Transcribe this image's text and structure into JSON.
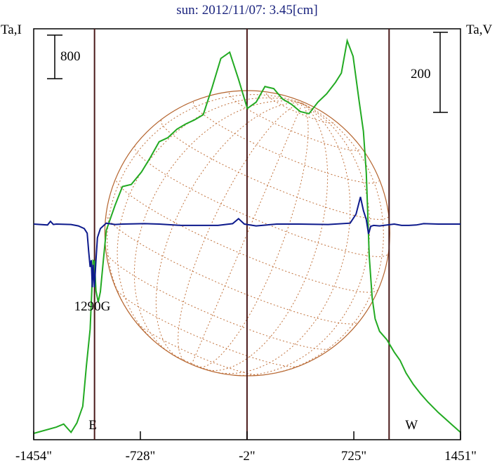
{
  "chart_data": {
    "type": "line",
    "title": "sun: 2012/11/07: 3.45[cm]",
    "left_axis_label": "Ta,I",
    "right_axis_label": "Ta,V",
    "scale_bars": [
      {
        "side": "left",
        "label": "800"
      },
      {
        "side": "right",
        "label": "200"
      }
    ],
    "x_ticks": [
      {
        "value": -1454,
        "label": "-1454\""
      },
      {
        "value": -728,
        "label": "-728\""
      },
      {
        "value": -2,
        "label": "-2\""
      },
      {
        "value": 725,
        "label": "725\""
      },
      {
        "value": 1451,
        "label": "1451\""
      }
    ],
    "xlim": [
      -1454,
      1451
    ],
    "vertical_markers": [
      -1040,
      -2,
      965
    ],
    "limb_labels": [
      {
        "label": "E",
        "x": -1080
      },
      {
        "label": "W",
        "x": 1075
      }
    ],
    "annotations": [
      {
        "text": "1290G",
        "x": -1055
      }
    ],
    "sun_disk_radius_arcsec": 970,
    "series": [
      {
        "name": "I",
        "color": "#22aa22",
        "x": [
          -1454,
          -1300,
          -1250,
          -1200,
          -1160,
          -1120,
          -1095,
          -1070,
          -1050,
          -1040,
          -1030,
          -1015,
          -1000,
          -980,
          -960,
          -900,
          -850,
          -790,
          -720,
          -660,
          -600,
          -540,
          -480,
          -420,
          -360,
          -300,
          -240,
          -180,
          -120,
          -60,
          0,
          60,
          120,
          180,
          240,
          300,
          360,
          420,
          480,
          540,
          600,
          640,
          680,
          720,
          760,
          790,
          810,
          830,
          850,
          870,
          900,
          950,
          1000,
          1040,
          1080,
          1130,
          1180,
          1230,
          1300,
          1380,
          1451
        ],
        "values": [
          0,
          60,
          90,
          10,
          100,
          260,
          650,
          1000,
          1660,
          1650,
          1370,
          1260,
          1360,
          1660,
          1950,
          2190,
          2370,
          2390,
          2510,
          2650,
          2800,
          2840,
          2920,
          2970,
          3010,
          3060,
          3320,
          3600,
          3660,
          3400,
          3120,
          3180,
          3330,
          3310,
          3210,
          3160,
          3090,
          3070,
          3180,
          3260,
          3370,
          3460,
          3770,
          3620,
          3200,
          2900,
          2500,
          1700,
          1300,
          1100,
          980,
          900,
          780,
          700,
          580,
          470,
          380,
          300,
          200,
          100,
          10
        ]
      },
      {
        "name": "V",
        "color": "#0d1a8c",
        "x": [
          -1454,
          -1360,
          -1340,
          -1320,
          -1300,
          -1200,
          -1150,
          -1110,
          -1090,
          -1080,
          -1070,
          -1062,
          -1055,
          -1050,
          -1040,
          -1030,
          -1020,
          -1000,
          -960,
          -900,
          -850,
          -700,
          -600,
          -450,
          -200,
          -100,
          -60,
          -20,
          60,
          200,
          350,
          550,
          700,
          740,
          770,
          790,
          810,
          825,
          840,
          860,
          900,
          1000,
          1050,
          1100,
          1150,
          1200,
          1300,
          1451
        ],
        "values": [
          0,
          -2,
          6,
          -1,
          0,
          -1,
          -4,
          -10,
          -20,
          -60,
          -95,
          -80,
          -140,
          -90,
          -140,
          -80,
          -30,
          -10,
          2,
          -1,
          0,
          1,
          0,
          -3,
          -3,
          1,
          12,
          0,
          -4,
          0,
          0,
          -1,
          2,
          22,
          60,
          30,
          10,
          -22,
          -5,
          -3,
          -4,
          0,
          -3,
          -3,
          -2,
          1,
          0,
          0
        ]
      }
    ]
  }
}
